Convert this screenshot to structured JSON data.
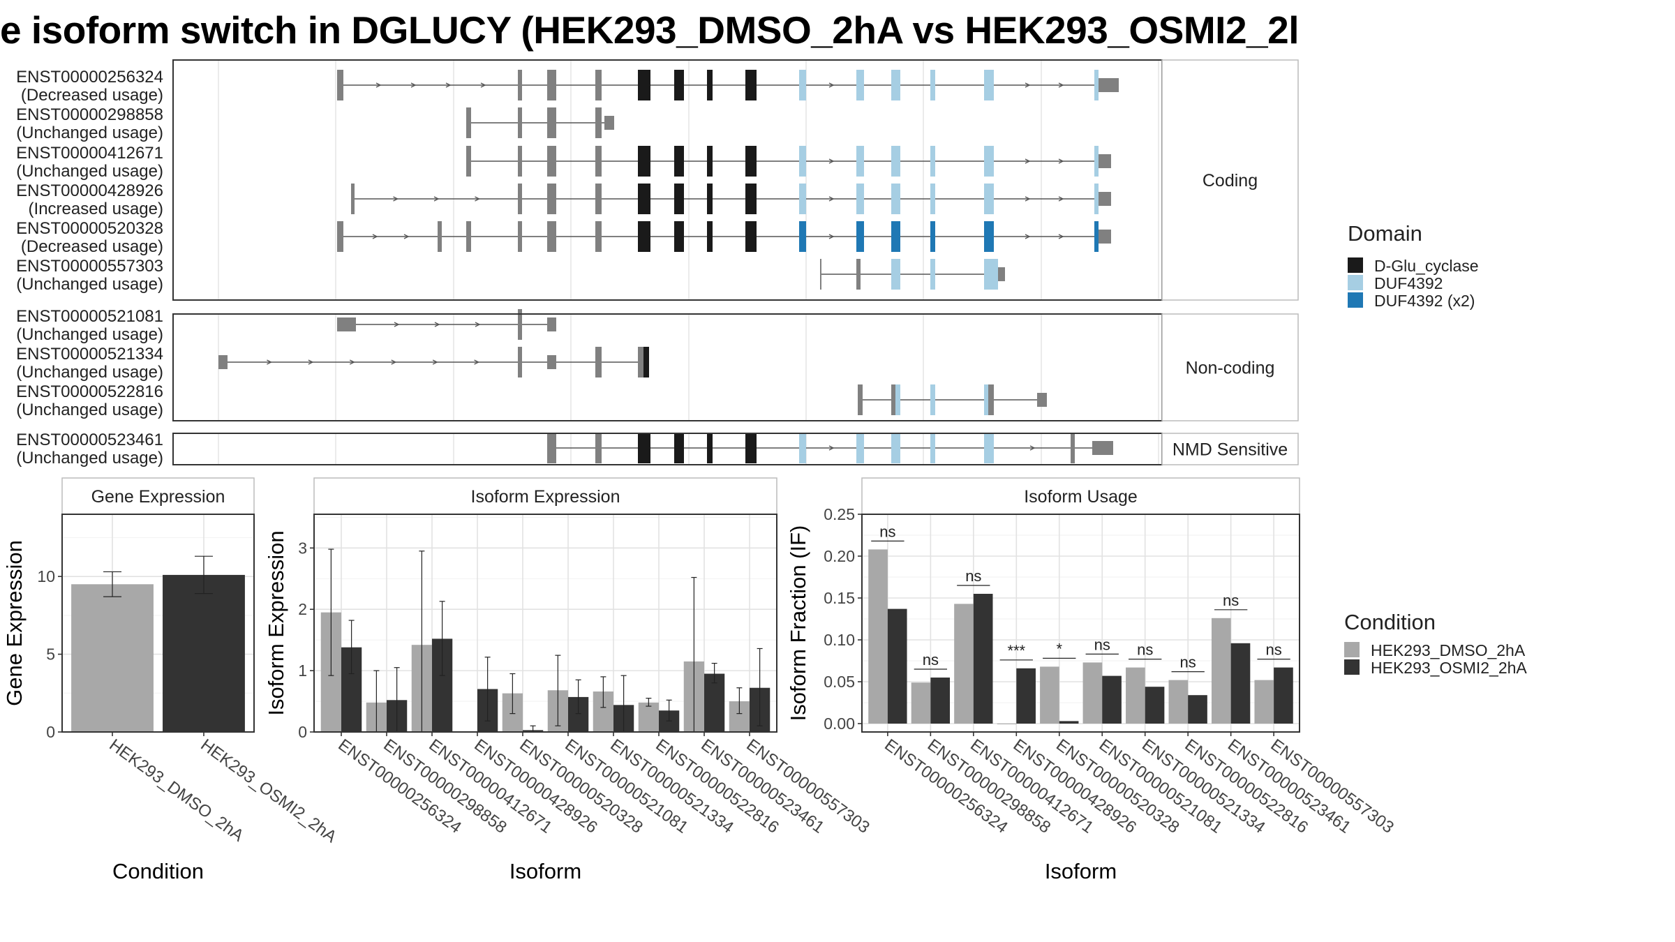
{
  "title": "e isoform switch in DGLUCY (HEK293_DMSO_2hA vs HEK293_OSMI2_2l",
  "legend_domain": {
    "title": "Domain",
    "items": [
      {
        "label": "D-Glu_cyclase",
        "color": "#1a1a1a"
      },
      {
        "label": "DUF4392",
        "color": "#a6cee3"
      },
      {
        "label": "DUF4392 (x2)",
        "color": "#1f78b4"
      }
    ]
  },
  "legend_condition": {
    "title": "Condition",
    "items": [
      {
        "label": "HEK293_DMSO_2hA",
        "color": "#a8a8a8"
      },
      {
        "label": "HEK293_OSMI2_2hA",
        "color": "#333333"
      }
    ]
  },
  "colors": {
    "exon": "#808080",
    "d_glu": "#1a1a1a",
    "duf": "#a6cee3",
    "duf2": "#1f78b4",
    "dmso": "#a8a8a8",
    "osmi": "#333333"
  },
  "structure": {
    "panels": [
      {
        "label": "Coding",
        "transcripts": [
          {
            "id": "ENST00000256324",
            "usage": "(Decreased usage)"
          },
          {
            "id": "ENST00000298858",
            "usage": "(Unchanged usage)"
          },
          {
            "id": "ENST00000412671",
            "usage": "(Unchanged usage)"
          },
          {
            "id": "ENST00000428926",
            "usage": "(Increased usage)"
          },
          {
            "id": "ENST00000520328",
            "usage": "(Decreased usage)"
          },
          {
            "id": "ENST00000557303",
            "usage": "(Unchanged usage)"
          }
        ]
      },
      {
        "label": "Non-coding",
        "transcripts": [
          {
            "id": "ENST00000521081",
            "usage": "(Unchanged usage)"
          },
          {
            "id": "ENST00000521334",
            "usage": "(Unchanged usage)"
          },
          {
            "id": "ENST00000522816",
            "usage": "(Unchanged usage)"
          }
        ]
      },
      {
        "label": "NMD Sensitive",
        "transcripts": [
          {
            "id": "ENST00000523461",
            "usage": "(Unchanged usage)"
          }
        ]
      }
    ]
  },
  "chart_data": [
    {
      "type": "bar",
      "title": "Gene Expression",
      "xlabel": "Condition",
      "ylabel": "Gene Expression",
      "ylim": [
        0,
        14
      ],
      "yticks": [
        "0",
        "5",
        "10"
      ],
      "categories": [
        "HEK293_DMSO_2hA",
        "HEK293_OSMI2_2hA"
      ],
      "values": [
        9.5,
        10.1
      ],
      "errors": [
        [
          8.7,
          10.3
        ],
        [
          8.9,
          11.3
        ]
      ]
    },
    {
      "type": "bar",
      "title": "Isoform Expression",
      "xlabel": "Isoform",
      "ylabel": "Isoform Expression",
      "ylim": [
        0,
        3.55
      ],
      "yticks": [
        "0",
        "1",
        "2",
        "3"
      ],
      "categories": [
        "ENST00000256324",
        "ENST00000298858",
        "ENST00000412671",
        "ENST00000428926",
        "ENST00000520328",
        "ENST00000521081",
        "ENST00000521334",
        "ENST00000522816",
        "ENST00000523461",
        "ENST00000557303"
      ],
      "series": [
        {
          "name": "HEK293_DMSO_2hA",
          "values": [
            1.95,
            0.48,
            1.42,
            0.0,
            0.63,
            0.68,
            0.66,
            0.48,
            1.15,
            0.5
          ],
          "errors": [
            [
              0.92,
              2.98
            ],
            [
              0.0,
              1.0
            ],
            [
              0.0,
              2.95
            ],
            [
              0.0,
              0.0
            ],
            [
              0.3,
              0.95
            ],
            [
              0.1,
              1.25
            ],
            [
              0.4,
              0.9
            ],
            [
              0.42,
              0.55
            ],
            [
              0.0,
              2.52
            ],
            [
              0.3,
              0.72
            ]
          ]
        },
        {
          "name": "HEK293_OSMI2_2hA",
          "values": [
            1.38,
            0.52,
            1.52,
            0.7,
            0.03,
            0.57,
            0.44,
            0.35,
            0.95,
            0.72
          ],
          "errors": [
            [
              0.95,
              1.82
            ],
            [
              0.0,
              1.05
            ],
            [
              0.92,
              2.13
            ],
            [
              0.18,
              1.22
            ],
            [
              0.0,
              0.1
            ],
            [
              0.3,
              0.85
            ],
            [
              0.0,
              0.92
            ],
            [
              0.18,
              0.52
            ],
            [
              0.8,
              1.12
            ],
            [
              0.1,
              1.36
            ]
          ]
        }
      ]
    },
    {
      "type": "bar",
      "title": "Isoform Usage",
      "xlabel": "Isoform",
      "ylabel": "Isoform Fraction (IF)",
      "ylim": [
        -0.01,
        0.25
      ],
      "yticks": [
        "0.00",
        "0.05",
        "0.10",
        "0.15",
        "0.20",
        "0.25"
      ],
      "categories": [
        "ENST00000256324",
        "ENST00000298858",
        "ENST00000412671",
        "ENST00000428926",
        "ENST00000520328",
        "ENST00000521081",
        "ENST00000521334",
        "ENST00000522816",
        "ENST00000523461",
        "ENST00000557303"
      ],
      "series": [
        {
          "name": "HEK293_DMSO_2hA",
          "values": [
            0.208,
            0.049,
            0.143,
            0.0,
            0.068,
            0.073,
            0.067,
            0.052,
            0.126,
            0.052
          ]
        },
        {
          "name": "HEK293_OSMI2_2hA",
          "values": [
            0.137,
            0.055,
            0.155,
            0.066,
            0.003,
            0.057,
            0.044,
            0.034,
            0.096,
            0.067
          ]
        }
      ],
      "significance": [
        "ns",
        "ns",
        "ns",
        "***",
        "*",
        "ns",
        "ns",
        "ns",
        "ns",
        "ns"
      ]
    }
  ]
}
